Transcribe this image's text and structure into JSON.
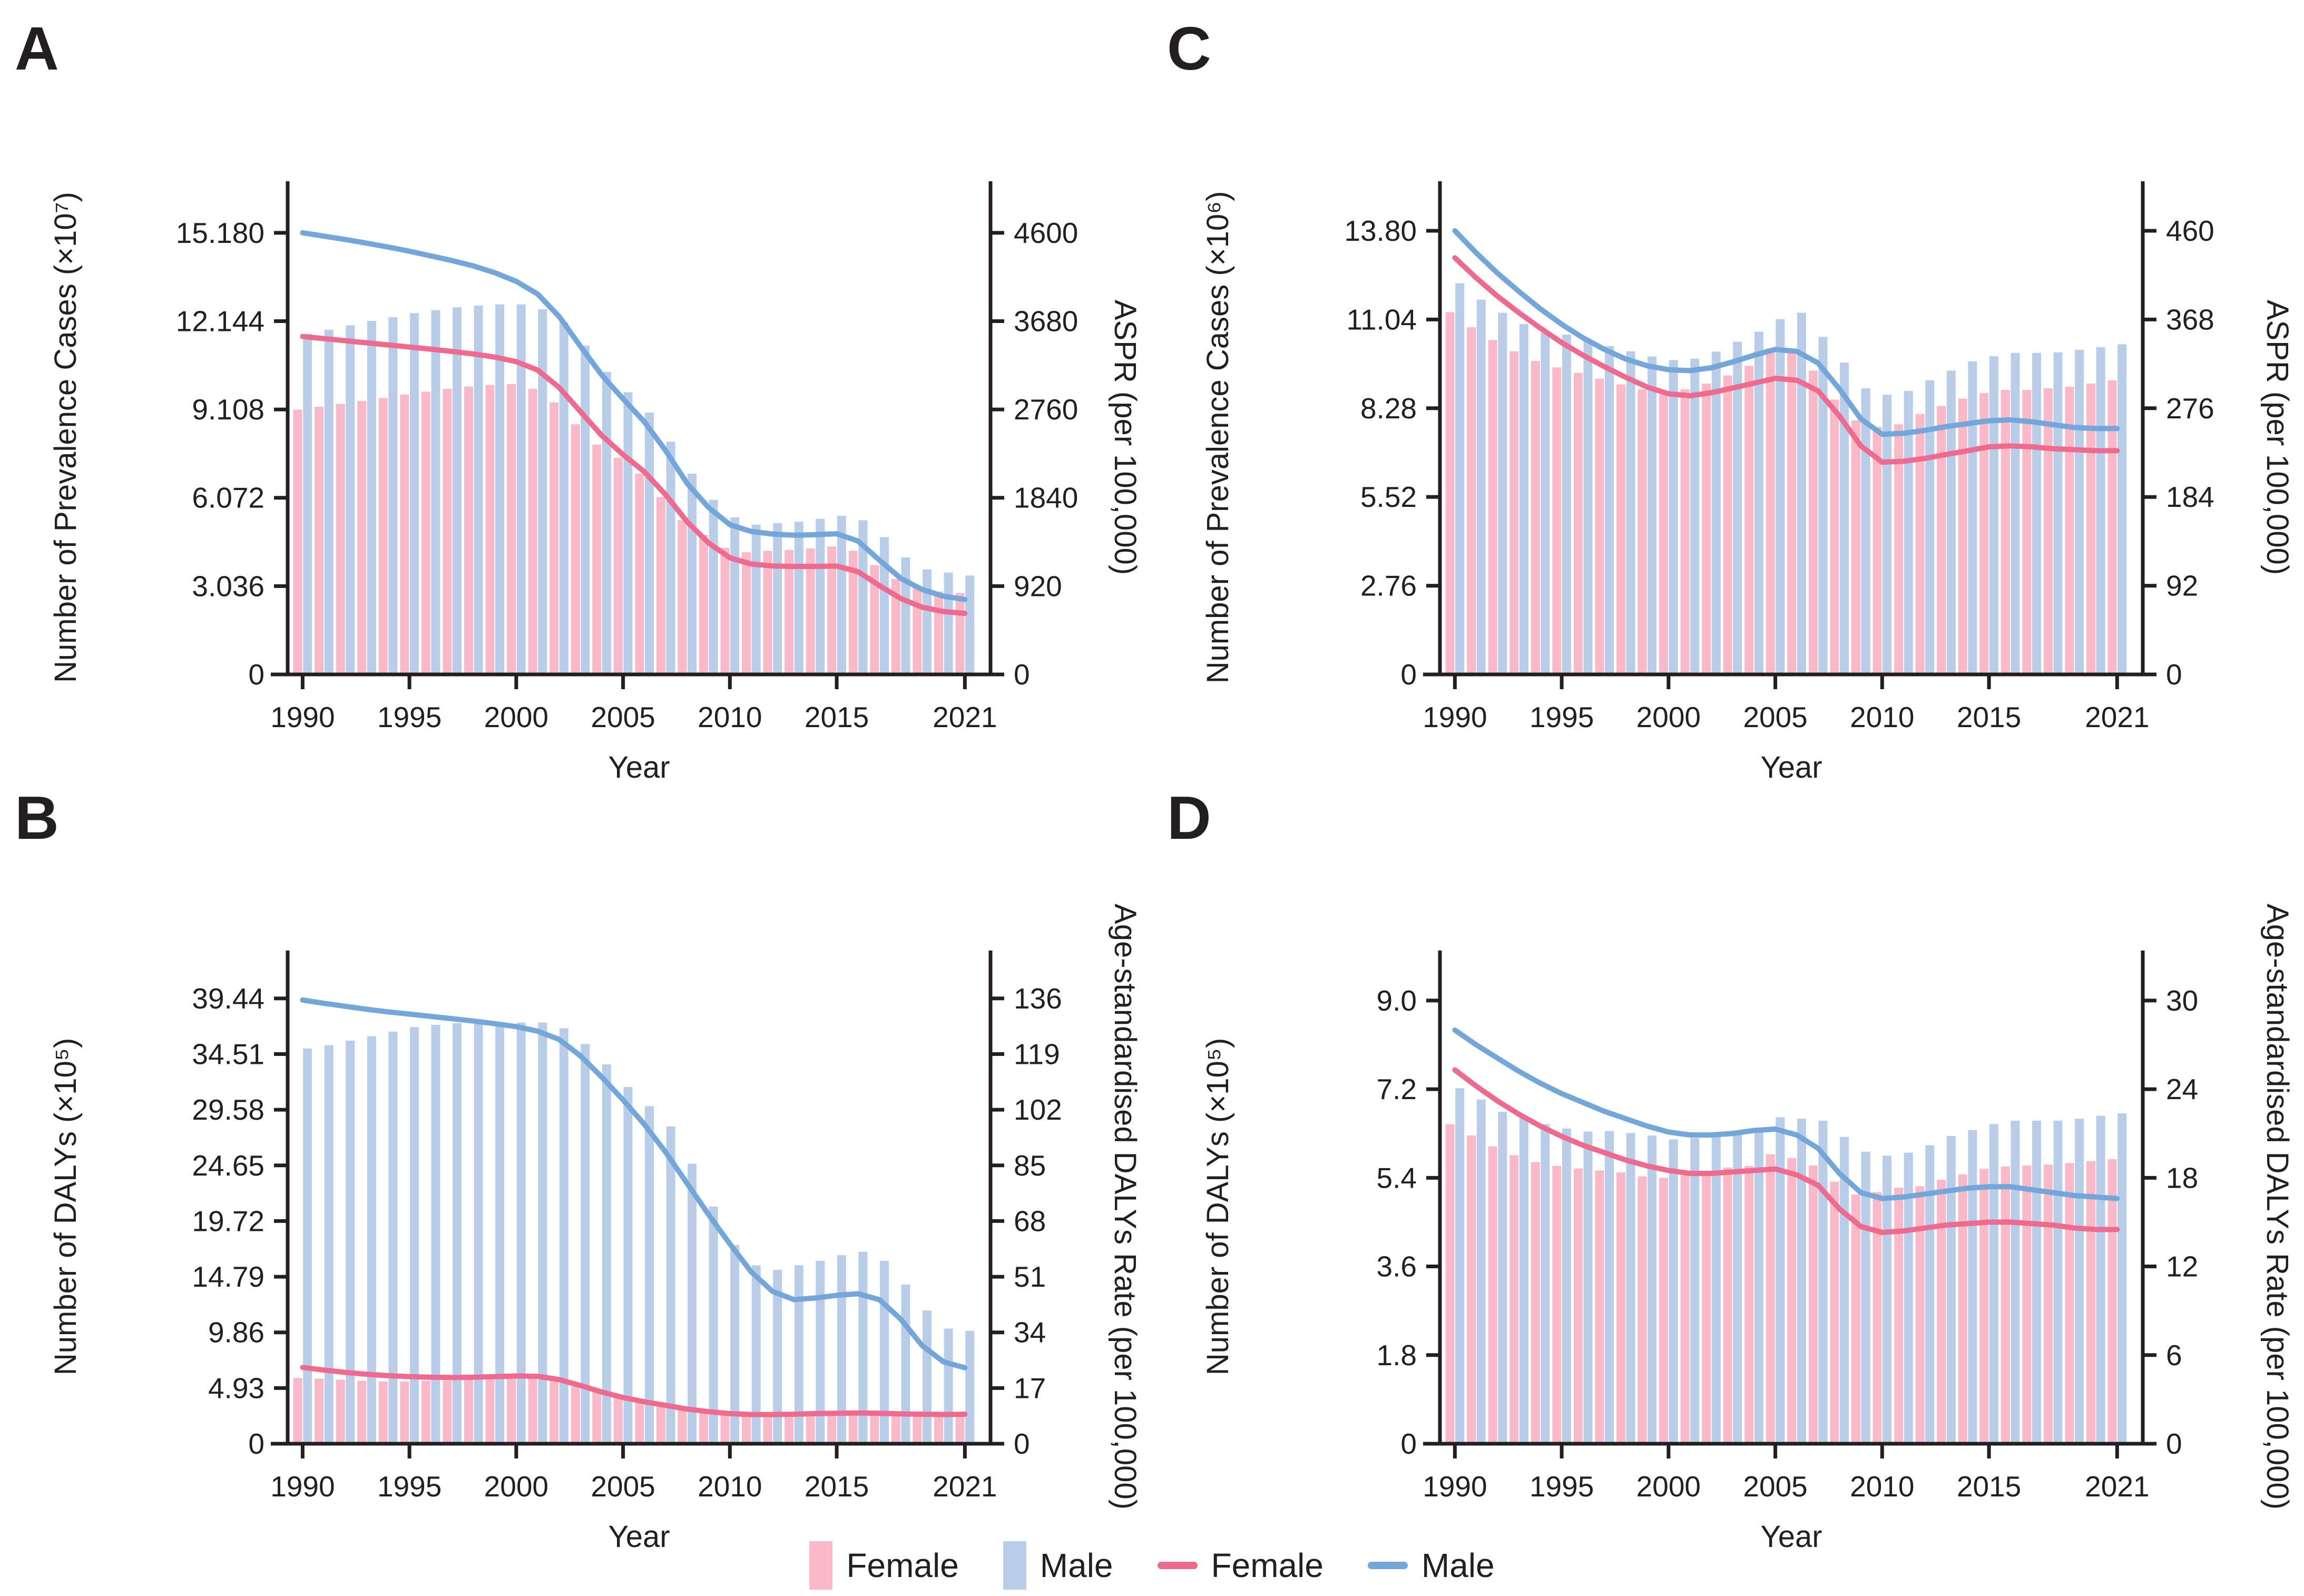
{
  "figure": {
    "background": "#ffffff"
  },
  "colors": {
    "female_bar": "#f9b9c8",
    "male_bar": "#b9cde9",
    "female_line": "#ed6b8f",
    "male_line": "#74a6da",
    "axis": "#231f20"
  },
  "legend": {
    "items": [
      {
        "label": "Female",
        "swatch": "bar",
        "color_key": "female_bar"
      },
      {
        "label": "Male",
        "swatch": "bar",
        "color_key": "male_bar"
      },
      {
        "label": "Female",
        "swatch": "line",
        "color_key": "female_line"
      },
      {
        "label": "Male",
        "swatch": "line",
        "color_key": "male_line"
      }
    ]
  },
  "chart_data": [
    {
      "panel": "A",
      "type": "bar",
      "overlay": "line",
      "xlabel": "Year",
      "x": [
        1990,
        1991,
        1992,
        1993,
        1994,
        1995,
        1996,
        1997,
        1998,
        1999,
        2000,
        2001,
        2002,
        2003,
        2004,
        2005,
        2006,
        2007,
        2008,
        2009,
        2010,
        2011,
        2012,
        2013,
        2014,
        2015,
        2016,
        2017,
        2018,
        2019,
        2020,
        2021
      ],
      "x_tick_labels": [
        "1990",
        "1995",
        "2000",
        "2005",
        "2010",
        "2015",
        "2021"
      ],
      "left_axis": {
        "label": "Number of Prevalence Cases (×10⁷)",
        "tick_labels": [
          "0",
          "3.036",
          "6.072",
          "9.108",
          "12.144",
          "15.180"
        ],
        "max": 16.3
      },
      "right_axis": {
        "label": "ASPR (per 100,000)",
        "tick_labels": [
          "0",
          "920",
          "1840",
          "2760",
          "3680",
          "4600"
        ],
        "max": 4939.4
      },
      "bar_series": [
        {
          "name": "Female",
          "axis": "left",
          "color_key": "female_bar",
          "values": [
            9.1,
            9.2,
            9.3,
            9.4,
            9.5,
            9.62,
            9.72,
            9.82,
            9.9,
            9.95,
            9.98,
            9.82,
            9.35,
            8.6,
            7.9,
            7.45,
            6.9,
            6.1,
            5.3,
            4.8,
            4.35,
            4.2,
            4.25,
            4.28,
            4.33,
            4.4,
            4.25,
            3.76,
            3.28,
            3.05,
            2.85,
            2.8
          ]
        },
        {
          "name": "Male",
          "axis": "left",
          "color_key": "male_bar",
          "values": [
            11.7,
            11.85,
            12.0,
            12.15,
            12.28,
            12.42,
            12.52,
            12.62,
            12.68,
            12.72,
            12.72,
            12.55,
            12.1,
            11.3,
            10.4,
            9.7,
            9.0,
            8.0,
            6.9,
            6.0,
            5.4,
            5.15,
            5.2,
            5.25,
            5.35,
            5.45,
            5.3,
            4.72,
            4.02,
            3.61,
            3.5,
            3.4
          ]
        }
      ],
      "line_series": [
        {
          "name": "Female",
          "axis": "right",
          "color_key": "female_line",
          "values": [
            3520,
            3498,
            3476,
            3454,
            3432,
            3410,
            3388,
            3364,
            3338,
            3305,
            3258,
            3170,
            2990,
            2740,
            2490,
            2290,
            2110,
            1870,
            1590,
            1370,
            1215,
            1150,
            1130,
            1125,
            1125,
            1130,
            1070,
            925,
            790,
            700,
            655,
            635
          ]
        },
        {
          "name": "Male",
          "axis": "right",
          "color_key": "male_line",
          "values": [
            4600,
            4565,
            4530,
            4492,
            4452,
            4408,
            4360,
            4310,
            4254,
            4184,
            4094,
            3962,
            3730,
            3420,
            3120,
            2870,
            2630,
            2330,
            1990,
            1740,
            1560,
            1490,
            1462,
            1450,
            1455,
            1465,
            1390,
            1190,
            1000,
            885,
            815,
            780
          ]
        }
      ]
    },
    {
      "panel": "B",
      "type": "bar",
      "overlay": "line",
      "xlabel": "Year",
      "x": [
        1990,
        1991,
        1992,
        1993,
        1994,
        1995,
        1996,
        1997,
        1998,
        1999,
        2000,
        2001,
        2002,
        2003,
        2004,
        2005,
        2006,
        2007,
        2008,
        2009,
        2010,
        2011,
        2012,
        2013,
        2014,
        2015,
        2016,
        2017,
        2018,
        2019,
        2020,
        2021
      ],
      "x_tick_labels": [
        "1990",
        "1995",
        "2000",
        "2005",
        "2010",
        "2015",
        "2021"
      ],
      "left_axis": {
        "label": "Number of DALYs (×10⁵)",
        "tick_labels": [
          "0",
          "4.93",
          "9.86",
          "14.79",
          "19.72",
          "24.65",
          "29.58",
          "34.51",
          "39.44"
        ],
        "max": 42.0
      },
      "right_axis": {
        "label": "Age-standardised DALYs Rate (per 100,000)",
        "tick_labels": [
          "0",
          "17",
          "34",
          "51",
          "68",
          "85",
          "102",
          "119",
          "136"
        ],
        "max": 144.83
      },
      "bar_series": [
        {
          "name": "Female",
          "axis": "left",
          "color_key": "female_bar",
          "values": [
            5.83,
            5.77,
            5.67,
            5.57,
            5.52,
            5.52,
            5.57,
            5.61,
            5.67,
            5.77,
            6.06,
            5.97,
            5.67,
            5.08,
            4.6,
            4.2,
            3.91,
            3.62,
            3.23,
            2.93,
            2.74,
            2.64,
            2.7,
            2.74,
            2.78,
            2.84,
            2.93,
            2.84,
            2.74,
            2.7,
            2.64,
            2.74
          ]
        },
        {
          "name": "Male",
          "axis": "left",
          "color_key": "male_bar",
          "values": [
            35.0,
            35.3,
            35.7,
            36.1,
            36.5,
            36.9,
            37.1,
            37.25,
            37.3,
            37.3,
            37.3,
            37.3,
            36.8,
            35.4,
            33.6,
            31.6,
            29.9,
            28.1,
            24.8,
            21.0,
            17.6,
            15.8,
            15.4,
            15.8,
            16.2,
            16.7,
            17.0,
            16.2,
            14.1,
            11.8,
            10.2,
            10.0
          ]
        }
      ],
      "line_series": [
        {
          "name": "Female",
          "axis": "right",
          "color_key": "female_line",
          "values": [
            23.3,
            22.5,
            21.8,
            21.2,
            20.8,
            20.5,
            20.3,
            20.2,
            20.3,
            20.5,
            20.7,
            20.6,
            19.6,
            17.8,
            15.8,
            14.1,
            12.8,
            11.7,
            10.6,
            9.8,
            9.2,
            8.9,
            8.9,
            9.0,
            9.2,
            9.3,
            9.4,
            9.3,
            9.1,
            9.0,
            8.9,
            9.0
          ]
        },
        {
          "name": "Male",
          "axis": "right",
          "color_key": "male_line",
          "values": [
            135.5,
            134.5,
            133.6,
            132.7,
            131.9,
            131.2,
            130.5,
            129.8,
            129.1,
            128.3,
            127.4,
            126.0,
            123.5,
            118.5,
            112.0,
            105.0,
            97.5,
            89.0,
            79.5,
            70.0,
            61.0,
            52.5,
            46.5,
            44.0,
            44.5,
            45.3,
            45.8,
            44.0,
            38.0,
            30.0,
            25.0,
            23.2
          ]
        }
      ]
    },
    {
      "panel": "C",
      "type": "bar",
      "overlay": "line",
      "xlabel": "Year",
      "x": [
        1990,
        1991,
        1992,
        1993,
        1994,
        1995,
        1996,
        1997,
        1998,
        1999,
        2000,
        2001,
        2002,
        2003,
        2004,
        2005,
        2006,
        2007,
        2008,
        2009,
        2010,
        2011,
        2012,
        2013,
        2014,
        2015,
        2016,
        2017,
        2018,
        2019,
        2020,
        2021
      ],
      "x_tick_labels": [
        "1990",
        "1995",
        "2000",
        "2005",
        "2010",
        "2015",
        "2021"
      ],
      "left_axis": {
        "label": "Number of Prevalence Cases (×10⁶)",
        "tick_labels": [
          "0",
          "2.76",
          "5.52",
          "8.28",
          "11.04",
          "13.80"
        ],
        "max": 14.75
      },
      "right_axis": {
        "label": "ASPR (per 100,000)",
        "tick_labels": [
          "0",
          "92",
          "184",
          "276",
          "368",
          "460"
        ],
        "max": 491.67
      },
      "bar_series": [
        {
          "name": "Female",
          "axis": "left",
          "color_key": "female_bar",
          "values": [
            11.27,
            10.8,
            10.4,
            10.05,
            9.75,
            9.55,
            9.38,
            9.2,
            9.02,
            8.87,
            8.72,
            8.87,
            9.05,
            9.3,
            9.6,
            10.14,
            10.08,
            9.45,
            8.55,
            7.9,
            7.7,
            7.78,
            8.1,
            8.35,
            8.58,
            8.75,
            8.85,
            8.85,
            8.9,
            8.95,
            9.05,
            9.15
          ]
        },
        {
          "name": "Male",
          "axis": "left",
          "color_key": "male_bar",
          "values": [
            12.17,
            11.66,
            11.25,
            10.9,
            10.62,
            10.57,
            10.4,
            10.21,
            10.05,
            9.89,
            9.78,
            9.82,
            10.04,
            10.35,
            10.66,
            11.05,
            11.25,
            10.5,
            9.7,
            8.9,
            8.7,
            8.82,
            9.15,
            9.45,
            9.74,
            9.9,
            10.0,
            10.0,
            10.02,
            10.1,
            10.18,
            10.27
          ]
        }
      ],
      "line_series": [
        {
          "name": "Female",
          "axis": "right",
          "color_key": "female_line",
          "values": [
            432,
            411,
            392,
            375,
            359,
            344,
            331,
            319,
            308,
            298,
            291,
            289,
            292,
            297,
            302,
            307,
            305,
            294,
            268,
            237,
            220,
            221,
            224,
            228,
            232,
            236,
            237,
            236,
            234,
            233,
            232,
            232
          ]
        },
        {
          "name": "Male",
          "axis": "right",
          "color_key": "male_line",
          "values": [
            460,
            437,
            416,
            397,
            379,
            363,
            349,
            337,
            327,
            320,
            316,
            315,
            318,
            324,
            331,
            337,
            335,
            323,
            296,
            265,
            249,
            250,
            253,
            257,
            260,
            263,
            264,
            262,
            259,
            256,
            255,
            255
          ]
        }
      ]
    },
    {
      "panel": "D",
      "type": "bar",
      "overlay": "line",
      "xlabel": "Year",
      "x": [
        1990,
        1991,
        1992,
        1993,
        1994,
        1995,
        1996,
        1997,
        1998,
        1999,
        2000,
        2001,
        2002,
        2003,
        2004,
        2005,
        2006,
        2007,
        2008,
        2009,
        2010,
        2011,
        2012,
        2013,
        2014,
        2015,
        2016,
        2017,
        2018,
        2019,
        2020,
        2021
      ],
      "x_tick_labels": [
        "1990",
        "1995",
        "2000",
        "2005",
        "2010",
        "2015",
        "2021"
      ],
      "left_axis": {
        "label": "Number of DALYs (×10⁵)",
        "tick_labels": [
          "0",
          "1.8",
          "3.6",
          "5.4",
          "7.2",
          "9.0"
        ],
        "max": 9.63
      },
      "right_axis": {
        "label": "Age-standardised DALYs Rate (per 100,000)",
        "tick_labels": [
          "0",
          "6",
          "12",
          "18",
          "24",
          "30"
        ],
        "max": 32.1
      },
      "bar_series": [
        {
          "name": "Female",
          "axis": "left",
          "color_key": "female_bar",
          "values": [
            6.49,
            6.26,
            6.04,
            5.86,
            5.72,
            5.64,
            5.59,
            5.55,
            5.51,
            5.43,
            5.4,
            5.45,
            5.53,
            5.61,
            5.64,
            5.88,
            5.8,
            5.65,
            5.32,
            5.06,
            5.11,
            5.2,
            5.23,
            5.36,
            5.47,
            5.58,
            5.63,
            5.65,
            5.67,
            5.7,
            5.74,
            5.78
          ]
        },
        {
          "name": "Male",
          "axis": "left",
          "color_key": "male_bar",
          "values": [
            7.22,
            6.99,
            6.74,
            6.62,
            6.49,
            6.4,
            6.34,
            6.35,
            6.31,
            6.26,
            6.18,
            6.21,
            6.27,
            6.34,
            6.42,
            6.63,
            6.6,
            6.56,
            6.23,
            5.93,
            5.85,
            5.91,
            6.06,
            6.25,
            6.37,
            6.49,
            6.56,
            6.56,
            6.56,
            6.6,
            6.66,
            6.71
          ]
        }
      ],
      "line_series": [
        {
          "name": "Female",
          "axis": "right",
          "color_key": "female_line",
          "values": [
            25.3,
            24.2,
            23.2,
            22.3,
            21.5,
            20.8,
            20.2,
            19.7,
            19.2,
            18.8,
            18.5,
            18.3,
            18.3,
            18.4,
            18.5,
            18.6,
            18.2,
            17.5,
            15.9,
            14.7,
            14.3,
            14.4,
            14.6,
            14.8,
            14.9,
            15.0,
            15.0,
            14.9,
            14.8,
            14.6,
            14.5,
            14.5
          ]
        },
        {
          "name": "Male",
          "axis": "right",
          "color_key": "male_line",
          "values": [
            28.0,
            27.0,
            26.1,
            25.2,
            24.4,
            23.7,
            23.1,
            22.5,
            22.0,
            21.5,
            21.1,
            20.9,
            20.9,
            21.0,
            21.2,
            21.3,
            20.9,
            20.0,
            18.3,
            17.0,
            16.6,
            16.7,
            16.9,
            17.1,
            17.3,
            17.4,
            17.4,
            17.2,
            17.0,
            16.8,
            16.7,
            16.6
          ]
        }
      ]
    }
  ]
}
